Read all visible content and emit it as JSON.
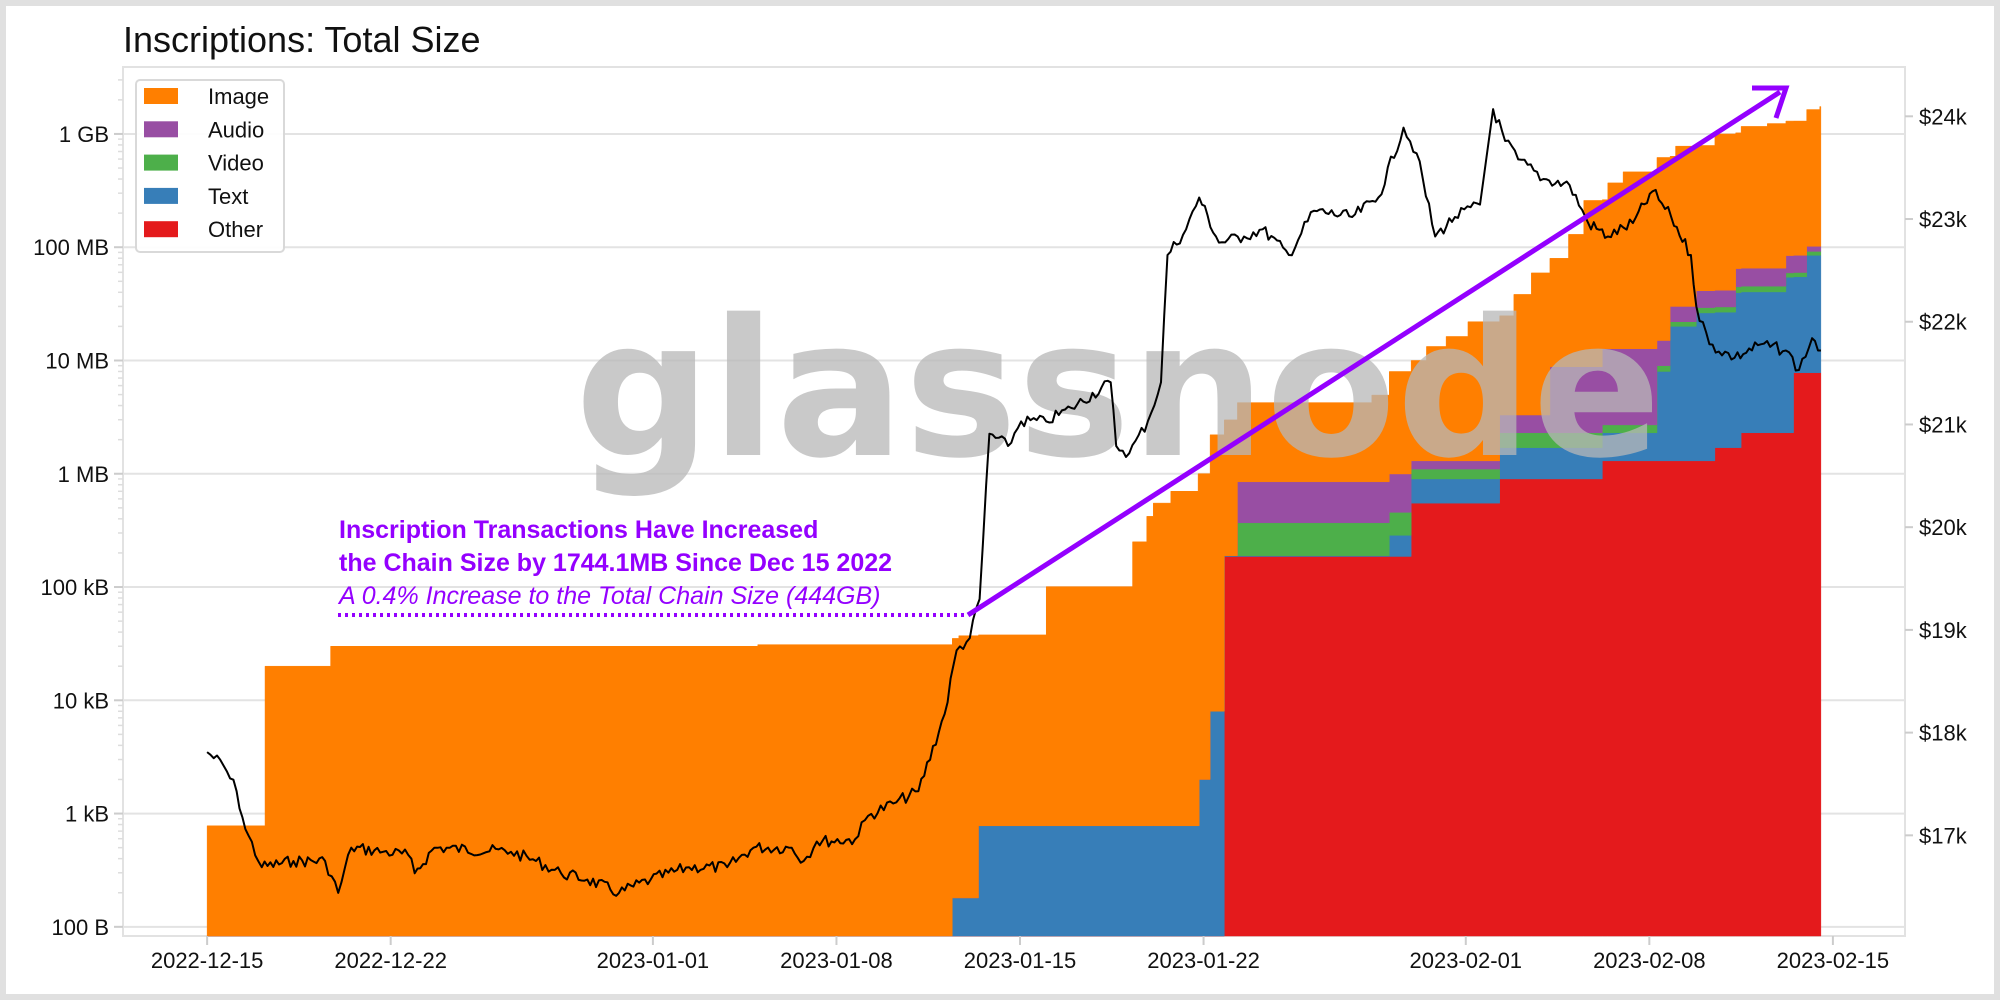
{
  "chart_data": {
    "type": "area",
    "stacked": true,
    "title": "Inscriptions: Total Size",
    "xlabel": "",
    "ylabel": "",
    "y_scale": "log",
    "xlim": [
      "2022-12-11T19:00",
      "2023-02-17T18:00"
    ],
    "ylim": [
      83,
      3900000000
    ],
    "y2lim": [
      16020,
      24480
    ],
    "grid": "horizontal",
    "legend_position": "top-left",
    "x_end": "2023-02-14T13:00",
    "x_ticks": [
      {
        "date": "2022-12-15",
        "label": "2022-12-15"
      },
      {
        "date": "2022-12-22",
        "label": "2022-12-22"
      },
      {
        "date": "2023-01-01",
        "label": "2023-01-01"
      },
      {
        "date": "2023-01-08",
        "label": "2023-01-08"
      },
      {
        "date": "2023-01-15",
        "label": "2023-01-15"
      },
      {
        "date": "2023-01-22",
        "label": "2023-01-22"
      },
      {
        "date": "2023-02-01",
        "label": "2023-02-01"
      },
      {
        "date": "2023-02-08",
        "label": "2023-02-08"
      },
      {
        "date": "2023-02-15",
        "label": "2023-02-15"
      }
    ],
    "y_ticks": [
      {
        "value": 100,
        "label": "100 B"
      },
      {
        "value": 1000,
        "label": "1 kB"
      },
      {
        "value": 10000,
        "label": "10 kB"
      },
      {
        "value": 100000,
        "label": "100 kB"
      },
      {
        "value": 1000000,
        "label": "1 MB"
      },
      {
        "value": 10000000,
        "label": "10 MB"
      },
      {
        "value": 100000000,
        "label": "100 MB"
      },
      {
        "value": 1000000000,
        "label": "1 GB"
      }
    ],
    "y2_ticks": [
      {
        "value": 17000,
        "label": "$17k"
      },
      {
        "value": 18000,
        "label": "$18k"
      },
      {
        "value": 19000,
        "label": "$19k"
      },
      {
        "value": 20000,
        "label": "$20k"
      },
      {
        "value": 21000,
        "label": "$21k"
      },
      {
        "value": 22000,
        "label": "$22k"
      },
      {
        "value": 23000,
        "label": "$23k"
      },
      {
        "value": 24000,
        "label": "$24k"
      }
    ],
    "series": [
      {
        "name": "Other",
        "color": "#e41a1c",
        "points": [
          [
            "2022-12-15T00:00",
            0
          ],
          [
            "2023-01-22T19:00",
            186000
          ],
          [
            "2023-01-29T22:00",
            550000
          ],
          [
            "2023-02-02T07:00",
            900000
          ],
          [
            "2023-02-06T05:00",
            1300000
          ],
          [
            "2023-02-10T12:00",
            1700000
          ],
          [
            "2023-02-11T12:00",
            2300000
          ],
          [
            "2023-02-13T12:00",
            7800000
          ]
        ]
      },
      {
        "name": "Text",
        "color": "#377eb8",
        "points": [
          [
            "2022-12-15T00:00",
            0
          ],
          [
            "2023-01-12T10:00",
            180
          ],
          [
            "2023-01-13T10:00",
            780
          ],
          [
            "2023-01-21T20:00",
            2000
          ],
          [
            "2023-01-22T06:00",
            8000
          ],
          [
            "2023-01-22T19:00",
            3000
          ],
          [
            "2023-01-29T02:00",
            100000
          ],
          [
            "2023-01-29T22:00",
            350000
          ],
          [
            "2023-02-02T07:00",
            800000
          ],
          [
            "2023-02-06T05:00",
            1000000
          ],
          [
            "2023-02-08T07:00",
            6700000
          ],
          [
            "2023-02-08T19:00",
            18700000
          ],
          [
            "2023-02-09T19:00",
            25000000
          ],
          [
            "2023-02-11T07:00",
            38000000
          ],
          [
            "2023-02-13T05:00",
            52000000
          ],
          [
            "2023-02-13T12:00",
            47000000
          ],
          [
            "2023-02-14T00:00",
            77000000
          ]
        ]
      },
      {
        "name": "Video",
        "color": "#4daf4a",
        "points": [
          [
            "2022-12-15T00:00",
            0
          ],
          [
            "2023-01-23T07:00",
            180000
          ],
          [
            "2023-01-29T02:00",
            170000
          ],
          [
            "2023-01-29T22:00",
            200000
          ],
          [
            "2023-02-02T07:00",
            600000
          ],
          [
            "2023-02-06T05:00",
            400000
          ],
          [
            "2023-02-08T07:00",
            1000000
          ],
          [
            "2023-02-08T19:00",
            2000000
          ],
          [
            "2023-02-09T19:00",
            3000000
          ],
          [
            "2023-02-11T07:00",
            5000000
          ],
          [
            "2023-02-13T05:00",
            5000000
          ],
          [
            "2023-02-14T00:00",
            7000000
          ]
        ]
      },
      {
        "name": "Audio",
        "color": "#984ea3",
        "points": [
          [
            "2022-12-15T00:00",
            0
          ],
          [
            "2023-01-23T07:00",
            480000
          ],
          [
            "2023-01-29T02:00",
            540000
          ],
          [
            "2023-01-29T22:00",
            200000
          ],
          [
            "2023-02-02T07:00",
            1000000
          ],
          [
            "2023-02-04T05:00",
            6500000
          ],
          [
            "2023-02-06T05:00",
            10000000
          ],
          [
            "2023-02-08T07:00",
            6000000
          ],
          [
            "2023-02-08T19:00",
            8000000
          ],
          [
            "2023-02-09T19:00",
            12000000
          ],
          [
            "2023-02-11T07:00",
            20000000
          ],
          [
            "2023-02-13T05:00",
            25000000
          ],
          [
            "2023-02-14T00:00",
            10000000
          ]
        ]
      },
      {
        "name": "Image",
        "color": "#ff7f00",
        "points": [
          [
            "2022-12-15T00:00",
            780
          ],
          [
            "2022-12-17T05:00",
            20000
          ],
          [
            "2022-12-19T17:00",
            30000
          ],
          [
            "2023-01-05T00:00",
            31000
          ],
          [
            "2023-01-12T10:00",
            35000
          ],
          [
            "2023-01-12T16:00",
            37000
          ],
          [
            "2023-01-16T00:00",
            100000
          ],
          [
            "2023-01-19T07:00",
            250000
          ],
          [
            "2023-01-19T20:00",
            420000
          ],
          [
            "2023-01-20T02:00",
            550000
          ],
          [
            "2023-01-20T18:00",
            700000
          ],
          [
            "2023-01-21T19:00",
            1000000
          ],
          [
            "2023-01-22T06:00",
            2200000
          ],
          [
            "2023-01-22T19:00",
            2800000
          ],
          [
            "2023-01-23T07:00",
            3400000
          ],
          [
            "2023-01-28T10:00",
            4100000
          ],
          [
            "2023-01-29T02:00",
            7000000
          ],
          [
            "2023-01-29T22:00",
            8700000
          ],
          [
            "2023-01-30T12:00",
            12000000
          ],
          [
            "2023-01-31T06:00",
            15000000
          ],
          [
            "2023-02-01T02:00",
            20700000
          ],
          [
            "2023-02-02T07:00",
            21500000
          ],
          [
            "2023-02-02T20:00",
            35000000
          ],
          [
            "2023-02-03T12:00",
            56000000
          ],
          [
            "2023-02-04T05:00",
            71000000
          ],
          [
            "2023-02-04T22:00",
            121000000
          ],
          [
            "2023-02-05T12:00",
            250000000
          ],
          [
            "2023-02-06T10:00",
            357000000
          ],
          [
            "2023-02-07T00:00",
            450000000
          ],
          [
            "2023-02-08T07:00",
            605000000
          ],
          [
            "2023-02-09T00:00",
            750000000
          ],
          [
            "2023-02-10T12:00",
            958000000
          ],
          [
            "2023-02-11T12:00",
            1100000000
          ],
          [
            "2023-02-12T12:00",
            1170000000
          ],
          [
            "2023-02-13T05:00",
            1215000000
          ],
          [
            "2023-02-14T00:00",
            1540000000
          ],
          [
            "2023-02-14T12:00",
            1644000000
          ]
        ]
      }
    ],
    "legend_order": [
      "Image",
      "Audio",
      "Video",
      "Text",
      "Other"
    ],
    "price": {
      "color": "#000000",
      "axis": "right",
      "points": [
        [
          "2022-12-15T00:00",
          17810
        ],
        [
          "2022-12-15T15:00",
          17680
        ],
        [
          "2022-12-16T03:00",
          17430
        ],
        [
          "2022-12-16T11:00",
          17060
        ],
        [
          "2022-12-17T02:00",
          16690
        ],
        [
          "2022-12-18T07:00",
          16750
        ],
        [
          "2022-12-19T12:00",
          16750
        ],
        [
          "2022-12-20T00:00",
          16440
        ],
        [
          "2022-12-20T12:00",
          16880
        ],
        [
          "2022-12-21T17:00",
          16840
        ],
        [
          "2022-12-22T16:00",
          16810
        ],
        [
          "2022-12-22T22:00",
          16630
        ],
        [
          "2022-12-23T16:00",
          16880
        ],
        [
          "2022-12-26T14:00",
          16840
        ],
        [
          "2022-12-27T13:00",
          16750
        ],
        [
          "2022-12-28T12:00",
          16630
        ],
        [
          "2022-12-29T12:00",
          16570
        ],
        [
          "2022-12-30T17:00",
          16440
        ],
        [
          "2022-12-31T22:00",
          16570
        ],
        [
          "2023-01-02T09:00",
          16690
        ],
        [
          "2023-01-03T20:00",
          16690
        ],
        [
          "2023-01-04T20:00",
          16880
        ],
        [
          "2023-01-06T07:00",
          16880
        ],
        [
          "2023-01-06T18:00",
          16750
        ],
        [
          "2023-01-07T06:00",
          16940
        ],
        [
          "2023-01-08T17:00",
          16960
        ],
        [
          "2023-01-09T05:00",
          17190
        ],
        [
          "2023-01-10T04:00",
          17310
        ],
        [
          "2023-01-11T03:00",
          17430
        ],
        [
          "2023-01-12T03:00",
          18180
        ],
        [
          "2023-01-12T14:00",
          18800
        ],
        [
          "2023-01-13T02:00",
          18920
        ],
        [
          "2023-01-13T11:00",
          19300
        ],
        [
          "2023-01-13T20:00",
          20910
        ],
        [
          "2023-01-14T13:00",
          20790
        ],
        [
          "2023-01-15T01:00",
          21030
        ],
        [
          "2023-01-16T00:00",
          21030
        ],
        [
          "2023-01-16T23:00",
          21160
        ],
        [
          "2023-01-18T11:00",
          21410
        ],
        [
          "2023-01-18T16:00",
          20790
        ],
        [
          "2023-01-19T04:00",
          20720
        ],
        [
          "2023-01-19T21:00",
          21030
        ],
        [
          "2023-01-20T09:00",
          21410
        ],
        [
          "2023-01-20T15:00",
          22650
        ],
        [
          "2023-01-21T08:00",
          22900
        ],
        [
          "2023-01-21T20:00",
          23210
        ],
        [
          "2023-01-22T14:00",
          22770
        ],
        [
          "2023-01-23T13:00",
          22830
        ],
        [
          "2023-01-24T06:00",
          22900
        ],
        [
          "2023-01-25T06:00",
          22650
        ],
        [
          "2023-01-26T05:00",
          23080
        ],
        [
          "2023-01-27T16:00",
          23020
        ],
        [
          "2023-01-28T16:00",
          23210
        ],
        [
          "2023-01-29T15:00",
          23890
        ],
        [
          "2023-01-30T03:00",
          23640
        ],
        [
          "2023-01-30T20:00",
          22830
        ],
        [
          "2023-01-31T14:00",
          23020
        ],
        [
          "2023-02-01T13:00",
          23140
        ],
        [
          "2023-02-02T01:00",
          24070
        ],
        [
          "2023-02-02T12:00",
          23760
        ],
        [
          "2023-02-03T00:00",
          23580
        ],
        [
          "2023-02-03T23:00",
          23390
        ],
        [
          "2023-02-04T23:00",
          23330
        ],
        [
          "2023-02-05T16:00",
          22960
        ],
        [
          "2023-02-06T10:00",
          22830
        ],
        [
          "2023-02-07T09:00",
          22960
        ],
        [
          "2023-02-08T03:00",
          23270
        ],
        [
          "2023-02-08T20:00",
          23020
        ],
        [
          "2023-02-09T14:00",
          22650
        ],
        [
          "2023-02-09T19:00",
          22150
        ],
        [
          "2023-02-10T07:00",
          21780
        ],
        [
          "2023-02-11T06:00",
          21650
        ],
        [
          "2023-02-12T06:00",
          21780
        ],
        [
          "2023-02-13T05:00",
          21720
        ],
        [
          "2023-02-13T17:00",
          21530
        ],
        [
          "2023-02-14T05:00",
          21840
        ],
        [
          "2023-02-14T13:00",
          21720
        ]
      ]
    },
    "annotation": {
      "line1": "Inscription Transactions Have Increased",
      "line2": "the Chain Size by 1744.1MB Since Dec 15 2022",
      "line3": "A 0.4% Increase to the Total Chain Size (444GB)",
      "color": "#9400ff"
    },
    "watermark": "glassnode"
  }
}
